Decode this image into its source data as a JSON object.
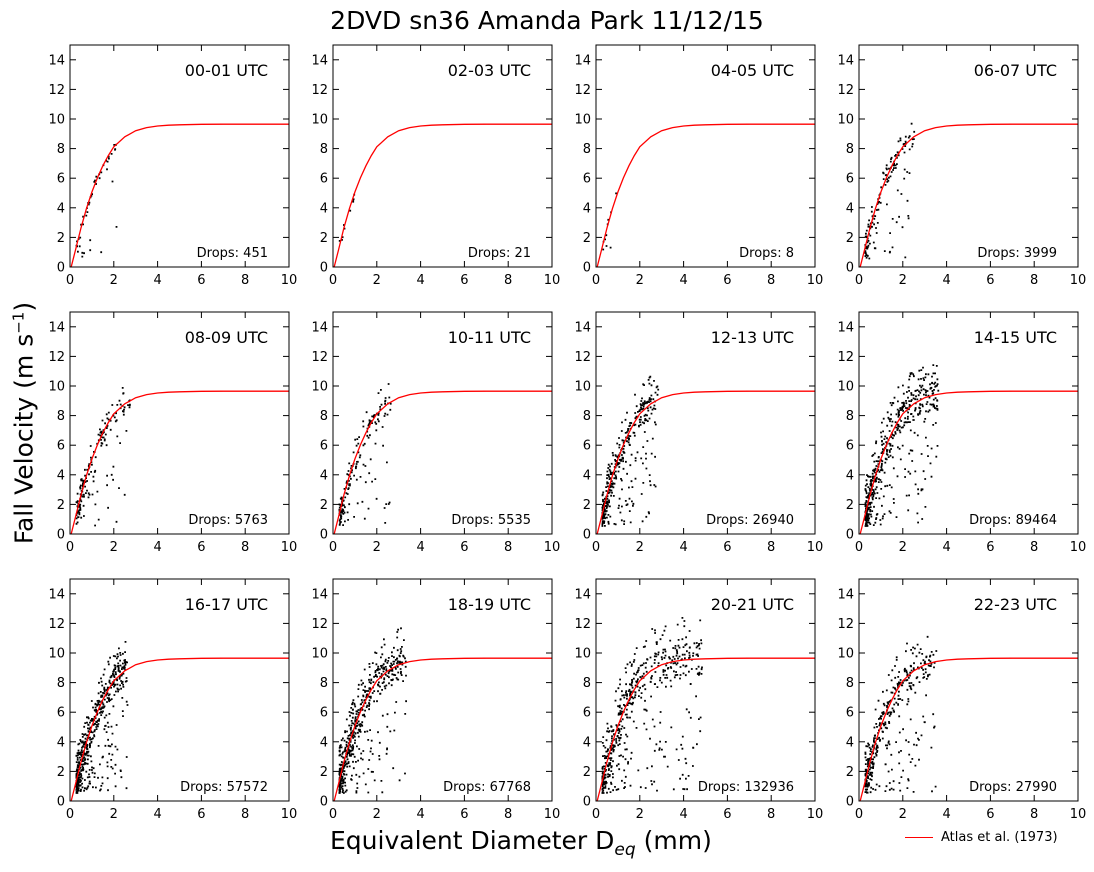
{
  "figure": {
    "title": "2DVD sn36 Amanda Park 11/12/15",
    "ylabel_main": "Fall Velocity (m s",
    "ylabel_sup": "−1",
    "ylabel_end": ")",
    "xlabel_main": "Equivalent Diameter D",
    "xlabel_sub": "eq",
    "xlabel_end": " (mm)",
    "legend_label": "Atlas et al. (1973)",
    "curve_color": "#ff0000",
    "point_color": "#000000"
  },
  "chart_data": {
    "type": "scatter",
    "xlim": [
      0,
      10
    ],
    "ylim": [
      0,
      15
    ],
    "xticks": [
      0,
      2,
      4,
      6,
      8,
      10
    ],
    "yticks": [
      0,
      2,
      4,
      6,
      8,
      10,
      12,
      14
    ],
    "reference_curve": {
      "name": "Atlas et al. (1973)",
      "x": [
        0.05,
        0.25,
        0.5,
        0.75,
        1.0,
        1.25,
        1.5,
        1.75,
        2.0,
        2.5,
        3.0,
        3.5,
        4.0,
        4.5,
        5.0,
        6.0,
        7.0,
        8.0,
        9.0,
        10.0
      ],
      "y": [
        -0.02,
        1.15,
        2.64,
        3.94,
        5.07,
        6.02,
        6.84,
        7.53,
        8.12,
        8.8,
        9.21,
        9.42,
        9.53,
        9.58,
        9.61,
        9.64,
        9.65,
        9.65,
        9.65,
        9.65
      ]
    },
    "panels": [
      {
        "time": "00-01 UTC",
        "drops": "Drops: 451",
        "max_d": 2.1,
        "spread": 0.2
      },
      {
        "time": "02-03 UTC",
        "drops": "Drops: 21",
        "max_d": 1.0,
        "spread": 0.15
      },
      {
        "time": "04-05 UTC",
        "drops": "Drops: 8",
        "max_d": 0.9,
        "spread": 0.15
      },
      {
        "time": "06-07 UTC",
        "drops": "Drops: 3999",
        "max_d": 2.5,
        "spread": 0.5
      },
      {
        "time": "08-09 UTC",
        "drops": "Drops: 5763",
        "max_d": 2.7,
        "spread": 0.6
      },
      {
        "time": "10-11 UTC",
        "drops": "Drops: 5535",
        "max_d": 2.6,
        "spread": 0.6
      },
      {
        "time": "12-13 UTC",
        "drops": "Drops: 26940",
        "max_d": 2.8,
        "spread": 0.8
      },
      {
        "time": "14-15 UTC",
        "drops": "Drops: 89464",
        "max_d": 3.6,
        "spread": 1.0
      },
      {
        "time": "16-17 UTC",
        "drops": "Drops: 57572",
        "max_d": 2.6,
        "spread": 0.9
      },
      {
        "time": "18-19 UTC",
        "drops": "Drops: 67768",
        "max_d": 3.3,
        "spread": 1.0
      },
      {
        "time": "20-21 UTC",
        "drops": "Drops: 132936",
        "max_d": 4.8,
        "spread": 1.2
      },
      {
        "time": "22-23 UTC",
        "drops": "Drops: 27990",
        "max_d": 3.5,
        "spread": 1.0
      }
    ]
  }
}
